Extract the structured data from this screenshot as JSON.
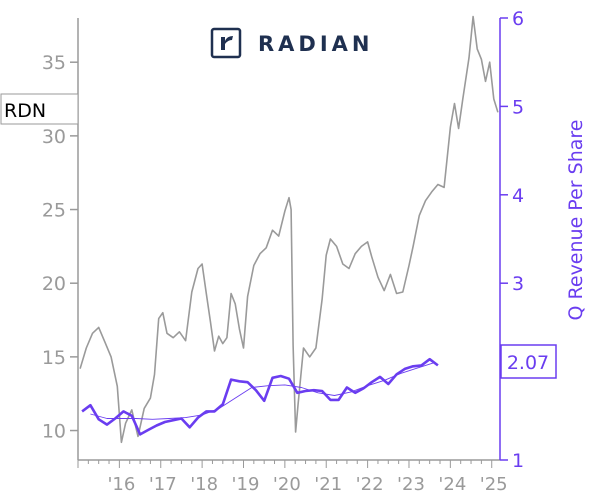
{
  "logo": {
    "wordmark": "RADIAN",
    "color": "#1f3050"
  },
  "ticker": "RDN",
  "colors": {
    "price": "#9a9a9a",
    "revenue": "#6a3df0",
    "axis_left": "#9a9a9a",
    "axis_right": "#6a3df0"
  },
  "chart_data": {
    "type": "line",
    "title": "",
    "xlabel": "",
    "ylabel_left": "",
    "ylabel_right": "Q Revenue Per Share",
    "x_tick_labels": [
      "'16",
      "'17",
      "'18",
      "'19",
      "'20",
      "'21",
      "'22",
      "'23",
      "'24",
      "'25"
    ],
    "y_left": {
      "ticks": [
        10,
        15,
        20,
        25,
        30,
        35
      ],
      "range": [
        8,
        38
      ]
    },
    "y_right": {
      "ticks": [
        1,
        2,
        3,
        4,
        5,
        6
      ],
      "range": [
        1,
        6
      ]
    },
    "last_value_label": "2.07",
    "series": [
      {
        "axis": "left",
        "style": "price",
        "points": [
          [
            2015.05,
            14.2
          ],
          [
            2015.2,
            15.6
          ],
          [
            2015.35,
            16.6
          ],
          [
            2015.5,
            17.0
          ],
          [
            2015.65,
            16.0
          ],
          [
            2015.8,
            15.0
          ],
          [
            2015.95,
            13.0
          ],
          [
            2016.05,
            9.2
          ],
          [
            2016.15,
            10.5
          ],
          [
            2016.3,
            11.4
          ],
          [
            2016.45,
            9.6
          ],
          [
            2016.6,
            11.5
          ],
          [
            2016.75,
            12.2
          ],
          [
            2016.85,
            13.8
          ],
          [
            2016.95,
            17.6
          ],
          [
            2017.05,
            18.0
          ],
          [
            2017.15,
            16.6
          ],
          [
            2017.3,
            16.3
          ],
          [
            2017.45,
            16.7
          ],
          [
            2017.6,
            16.1
          ],
          [
            2017.75,
            19.4
          ],
          [
            2017.9,
            21.0
          ],
          [
            2018.0,
            21.3
          ],
          [
            2018.1,
            19.3
          ],
          [
            2018.2,
            17.4
          ],
          [
            2018.3,
            15.4
          ],
          [
            2018.4,
            16.4
          ],
          [
            2018.5,
            15.9
          ],
          [
            2018.6,
            16.3
          ],
          [
            2018.7,
            19.3
          ],
          [
            2018.8,
            18.6
          ],
          [
            2018.9,
            16.9
          ],
          [
            2019.0,
            15.6
          ],
          [
            2019.1,
            19.1
          ],
          [
            2019.25,
            21.2
          ],
          [
            2019.4,
            22.0
          ],
          [
            2019.55,
            22.4
          ],
          [
            2019.7,
            23.6
          ],
          [
            2019.85,
            23.2
          ],
          [
            2020.0,
            24.9
          ],
          [
            2020.1,
            25.8
          ],
          [
            2020.15,
            25.0
          ],
          [
            2020.2,
            15.8
          ],
          [
            2020.26,
            9.9
          ],
          [
            2020.32,
            11.8
          ],
          [
            2020.45,
            15.6
          ],
          [
            2020.6,
            15.0
          ],
          [
            2020.75,
            15.6
          ],
          [
            2020.9,
            18.9
          ],
          [
            2021.0,
            21.9
          ],
          [
            2021.1,
            23.0
          ],
          [
            2021.25,
            22.5
          ],
          [
            2021.4,
            21.3
          ],
          [
            2021.55,
            21.0
          ],
          [
            2021.7,
            22.0
          ],
          [
            2021.85,
            22.5
          ],
          [
            2022.0,
            22.8
          ],
          [
            2022.1,
            21.8
          ],
          [
            2022.25,
            20.4
          ],
          [
            2022.4,
            19.5
          ],
          [
            2022.55,
            20.6
          ],
          [
            2022.7,
            19.3
          ],
          [
            2022.85,
            19.4
          ],
          [
            2023.0,
            21.2
          ],
          [
            2023.1,
            22.5
          ],
          [
            2023.25,
            24.6
          ],
          [
            2023.4,
            25.6
          ],
          [
            2023.55,
            26.2
          ],
          [
            2023.7,
            26.7
          ],
          [
            2023.85,
            26.5
          ],
          [
            2024.0,
            30.6
          ],
          [
            2024.1,
            32.2
          ],
          [
            2024.2,
            30.5
          ],
          [
            2024.3,
            32.5
          ],
          [
            2024.45,
            35.3
          ],
          [
            2024.55,
            38.1
          ],
          [
            2024.65,
            35.9
          ],
          [
            2024.75,
            35.2
          ],
          [
            2024.85,
            33.7
          ],
          [
            2024.95,
            35.0
          ],
          [
            2025.05,
            32.5
          ],
          [
            2025.15,
            31.6
          ]
        ]
      },
      {
        "axis": "right",
        "style": "revenue",
        "points": [
          [
            2015.1,
            1.55
          ],
          [
            2015.3,
            1.62
          ],
          [
            2015.5,
            1.46
          ],
          [
            2015.7,
            1.4
          ],
          [
            2015.9,
            1.47
          ],
          [
            2016.1,
            1.55
          ],
          [
            2016.3,
            1.5
          ],
          [
            2016.5,
            1.29
          ],
          [
            2016.7,
            1.34
          ],
          [
            2016.9,
            1.39
          ],
          [
            2017.1,
            1.43
          ],
          [
            2017.3,
            1.45
          ],
          [
            2017.5,
            1.47
          ],
          [
            2017.7,
            1.37
          ],
          [
            2017.9,
            1.48
          ],
          [
            2018.1,
            1.55
          ],
          [
            2018.3,
            1.55
          ],
          [
            2018.5,
            1.63
          ],
          [
            2018.7,
            1.91
          ],
          [
            2018.9,
            1.89
          ],
          [
            2019.1,
            1.88
          ],
          [
            2019.3,
            1.79
          ],
          [
            2019.5,
            1.67
          ],
          [
            2019.7,
            1.93
          ],
          [
            2019.9,
            1.95
          ],
          [
            2020.1,
            1.92
          ],
          [
            2020.3,
            1.76
          ],
          [
            2020.5,
            1.78
          ],
          [
            2020.7,
            1.79
          ],
          [
            2020.9,
            1.78
          ],
          [
            2021.1,
            1.68
          ],
          [
            2021.3,
            1.68
          ],
          [
            2021.5,
            1.82
          ],
          [
            2021.7,
            1.76
          ],
          [
            2021.9,
            1.81
          ],
          [
            2022.1,
            1.88
          ],
          [
            2022.3,
            1.94
          ],
          [
            2022.5,
            1.86
          ],
          [
            2022.7,
            1.97
          ],
          [
            2022.9,
            2.03
          ],
          [
            2023.1,
            2.06
          ],
          [
            2023.3,
            2.07
          ],
          [
            2023.5,
            2.14
          ],
          [
            2023.7,
            2.07
          ]
        ]
      },
      {
        "axis": "right",
        "style": "revenue-trend",
        "points": [
          [
            2015.3,
            1.52
          ],
          [
            2015.7,
            1.47
          ],
          [
            2016.0,
            1.47
          ],
          [
            2016.4,
            1.47
          ],
          [
            2016.8,
            1.46
          ],
          [
            2017.2,
            1.47
          ],
          [
            2017.6,
            1.48
          ],
          [
            2018.0,
            1.51
          ],
          [
            2018.4,
            1.58
          ],
          [
            2018.8,
            1.7
          ],
          [
            2019.2,
            1.82
          ],
          [
            2019.6,
            1.84
          ],
          [
            2020.0,
            1.85
          ],
          [
            2020.4,
            1.82
          ],
          [
            2020.8,
            1.76
          ],
          [
            2021.2,
            1.73
          ],
          [
            2021.6,
            1.77
          ],
          [
            2022.0,
            1.84
          ],
          [
            2022.4,
            1.9
          ],
          [
            2022.8,
            1.98
          ],
          [
            2023.2,
            2.04
          ],
          [
            2023.6,
            2.1
          ]
        ]
      }
    ]
  }
}
